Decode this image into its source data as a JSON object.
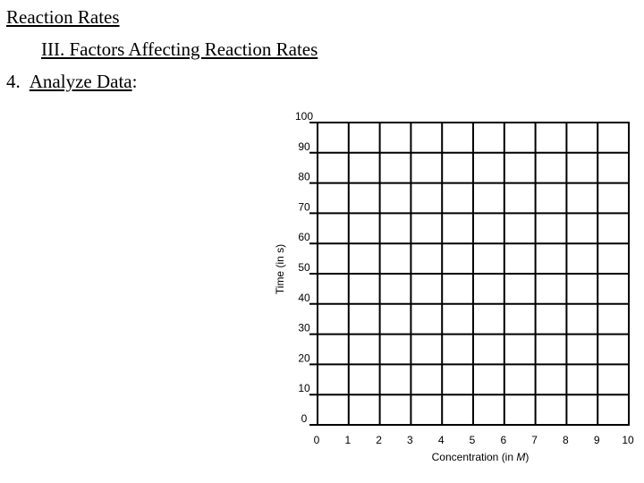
{
  "header": {
    "title": "Reaction Rates",
    "subtitle": "III.  Factors Affecting Reaction Rates",
    "item_number": "4.",
    "item_label": "Analyze Data",
    "item_suffix": ":"
  },
  "chart_data": {
    "type": "scatter",
    "title": "",
    "xlabel": "Concentration (in M)",
    "xlabel_prefix": "Concentration (in ",
    "xlabel_unit": "M",
    "xlabel_suffix": ")",
    "ylabel": "Time (in s)",
    "xlim": [
      0,
      10
    ],
    "ylim": [
      0,
      100
    ],
    "x_ticks": [
      0,
      1,
      2,
      3,
      4,
      5,
      6,
      7,
      8,
      9,
      10
    ],
    "y_ticks": [
      0,
      10,
      20,
      30,
      40,
      50,
      60,
      70,
      80,
      90,
      100
    ],
    "grid": true,
    "series": []
  }
}
